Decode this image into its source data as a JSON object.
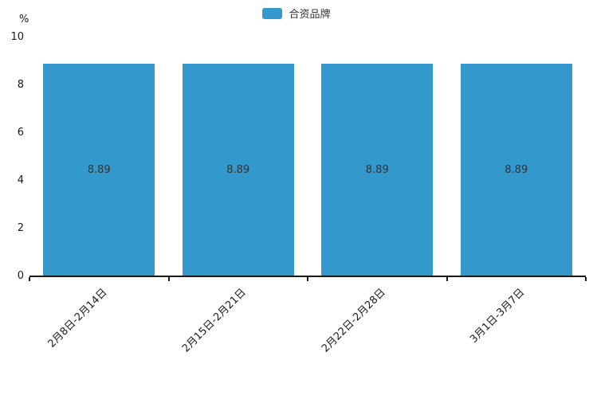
{
  "chart_data": {
    "type": "bar",
    "title": "",
    "categories": [
      "2月8日-2月14日",
      "2月15日-2月21日",
      "2月22日-2月28日",
      "3月1日-3月7日"
    ],
    "series": [
      {
        "name": "合资品牌",
        "color": "#3398cc",
        "values": [
          8.89,
          8.89,
          8.89,
          8.89
        ]
      }
    ],
    "value_labels": [
      "8.89",
      "8.89",
      "8.89",
      "8.89"
    ],
    "xlabel": "",
    "ylabel": "%",
    "ylim": [
      0,
      10
    ],
    "yticks": [
      10,
      8,
      6,
      4,
      2,
      0
    ],
    "legend_position": "top-center",
    "grid": false,
    "bar_label_position": "inside-center",
    "x_label_rotation_deg": 45
  }
}
